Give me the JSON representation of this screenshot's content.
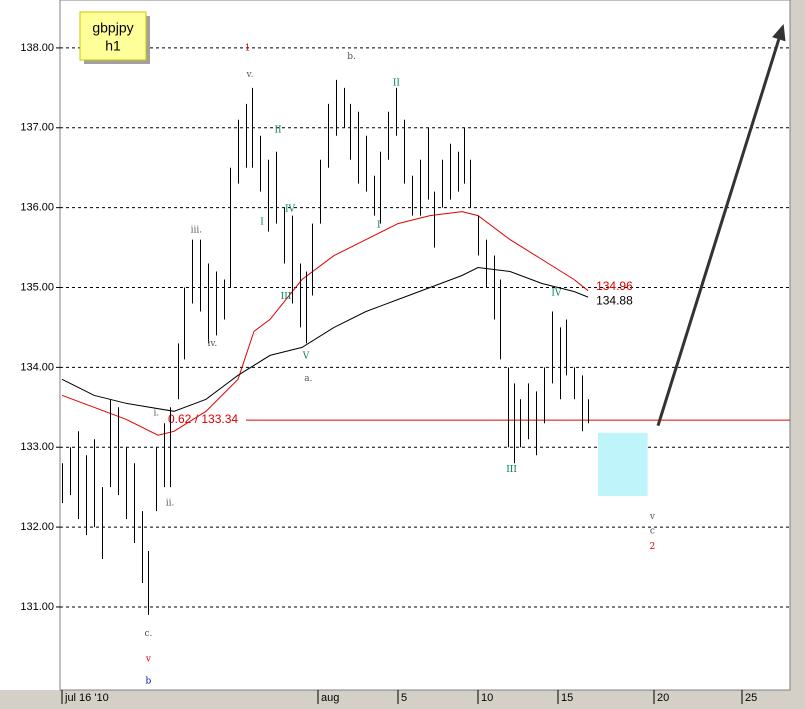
{
  "chart_data": {
    "type": "ohlc",
    "symbol": "gbpjpy",
    "timeframe": "h1",
    "ylim": [
      129.96,
      138.6
    ],
    "yticks": [
      {
        "value": 131,
        "label": "131.00"
      },
      {
        "value": 132,
        "label": "132.00"
      },
      {
        "value": 133,
        "label": "133.00"
      },
      {
        "value": 134,
        "label": "134.00"
      },
      {
        "value": 135,
        "label": "135.00"
      },
      {
        "value": 136,
        "label": "136.00"
      },
      {
        "value": 137,
        "label": "137.00"
      },
      {
        "value": 138,
        "label": "138.00"
      }
    ],
    "xlim": [
      16,
      61.5
    ],
    "xticks": [
      {
        "value": 16,
        "label": "jul 16 '10"
      },
      {
        "value": 32,
        "label": "aug"
      },
      {
        "value": 37,
        "label": "5"
      },
      {
        "value": 42,
        "label": "10"
      },
      {
        "value": 47,
        "label": "15"
      },
      {
        "value": 53,
        "label": "20"
      },
      {
        "value": 58.5,
        "label": "25"
      }
    ],
    "grid": true,
    "bar_color": "#000000",
    "bars": {
      "x": [
        16,
        16.5,
        17,
        17.5,
        18,
        18.5,
        19,
        19.5,
        20,
        20.5,
        21,
        21.38,
        21.88,
        22.38,
        22.75,
        23.25,
        23.63,
        24.13,
        24.63,
        25.13,
        25.63,
        26.13,
        26.5,
        27,
        27.5,
        27.88,
        28.38,
        28.88,
        29.38,
        29.88,
        30.38,
        30.88,
        31.25,
        31.63,
        32.13,
        32.63,
        33.13,
        33.63,
        34,
        34.5,
        35,
        35.5,
        35.88,
        36.38,
        36.88,
        37.38,
        37.88,
        38.38,
        38.88,
        39.25,
        39.75,
        40.25,
        40.75,
        41.13,
        41.5,
        42,
        42.5,
        43,
        43.38,
        43.88,
        44.25,
        44.63,
        45.13,
        45.63,
        46.13,
        46.63,
        47.13,
        47.5,
        48,
        48.5,
        48.88
      ],
      "low": [
        132.3,
        132.4,
        132.1,
        131.9,
        132.0,
        131.6,
        132.5,
        132.4,
        132.1,
        131.8,
        131.3,
        130.9,
        132.2,
        132.5,
        132.5,
        133.6,
        134.1,
        134.8,
        134.7,
        134.3,
        134.4,
        134.6,
        135.0,
        136.3,
        136.5,
        136.5,
        136.2,
        135.7,
        135.8,
        135.3,
        134.8,
        134.5,
        134.3,
        134.9,
        135.8,
        136.5,
        136.9,
        137.0,
        136.6,
        136.3,
        136.2,
        135.9,
        135.8,
        136.6,
        136.9,
        136.3,
        135.9,
        135.9,
        136.1,
        135.5,
        136.0,
        136.1,
        136.2,
        136.3,
        136.0,
        135.4,
        135.0,
        134.6,
        134.1,
        133.0,
        132.8,
        133.0,
        133.1,
        132.9,
        133.3,
        133.8,
        133.6,
        133.9,
        133.6,
        133.2,
        133.3
      ],
      "high": [
        132.8,
        133.0,
        133.2,
        132.9,
        133.1,
        132.5,
        133.6,
        133.5,
        133.0,
        132.8,
        132.2,
        131.7,
        133.0,
        133.3,
        133.5,
        134.3,
        135.0,
        135.6,
        135.6,
        135.3,
        135.2,
        135.1,
        136.5,
        137.1,
        137.3,
        137.5,
        136.9,
        136.6,
        136.7,
        136.0,
        135.9,
        135.3,
        135.2,
        135.8,
        136.6,
        137.3,
        137.6,
        137.5,
        137.3,
        137.2,
        136.9,
        136.4,
        136.7,
        137.2,
        137.5,
        137.1,
        136.4,
        136.6,
        137.0,
        136.2,
        136.6,
        136.8,
        136.7,
        137.0,
        136.6,
        135.9,
        135.6,
        135.4,
        135.1,
        134.0,
        133.8,
        133.6,
        133.8,
        133.7,
        134.0,
        134.7,
        134.5,
        134.6,
        134.0,
        133.9,
        133.6
      ]
    },
    "series": [
      {
        "color": "#e00000",
        "x": [
          16,
          18,
          20,
          22,
          23,
          25,
          27,
          28,
          29,
          31,
          33,
          35,
          37,
          39,
          41,
          42,
          44,
          46,
          48,
          48.88
        ],
        "values": [
          133.65,
          133.5,
          133.35,
          133.15,
          133.2,
          133.45,
          133.85,
          134.45,
          134.6,
          135.1,
          135.4,
          135.6,
          135.8,
          135.9,
          135.95,
          135.9,
          135.6,
          135.35,
          135.1,
          134.96
        ]
      },
      {
        "color": "#000000",
        "x": [
          16,
          18,
          20,
          23,
          25,
          27,
          29,
          31,
          33,
          35,
          37,
          39,
          41,
          42,
          44,
          46,
          48,
          48.88
        ],
        "values": [
          133.85,
          133.65,
          133.55,
          133.45,
          133.6,
          133.9,
          134.15,
          134.25,
          134.5,
          134.7,
          134.85,
          135.0,
          135.15,
          135.25,
          135.2,
          135.05,
          134.95,
          134.88
        ]
      }
    ],
    "hline": {
      "value": 133.34,
      "label": "0.62 / 133.34",
      "color": "#e00000"
    },
    "target_zone": {
      "x": [
        49.5,
        52.6
      ],
      "y": [
        132.39,
        133.18
      ],
      "color": "#bff4fb"
    },
    "arrow": {
      "from": [
        53.25,
        133.27
      ],
      "to": [
        61.1,
        138.3
      ],
      "color": "#333333"
    },
    "annotations": [
      {
        "text": "1",
        "x": 27.6,
        "y": 138.0,
        "color": "#e00000"
      },
      {
        "text": "v.",
        "x": 27.75,
        "y": 137.67,
        "color": "#555555"
      },
      {
        "text": "b.",
        "x": 34.1,
        "y": 137.89,
        "color": "#555555"
      },
      {
        "text": "II",
        "x": 29.5,
        "y": 136.97,
        "color": "#008060"
      },
      {
        "text": "II",
        "x": 36.9,
        "y": 137.56,
        "color": "#008060"
      },
      {
        "text": "iii.",
        "x": 24.4,
        "y": 135.72,
        "color": "#555555"
      },
      {
        "text": "iv.",
        "x": 25.4,
        "y": 134.3,
        "color": "#555555"
      },
      {
        "text": "i.",
        "x": 21.9,
        "y": 133.43,
        "color": "#555555"
      },
      {
        "text": "ii.",
        "x": 22.75,
        "y": 132.3,
        "color": "#555555"
      },
      {
        "text": "c.",
        "x": 21.4,
        "y": 130.67,
        "color": "#555555"
      },
      {
        "text": "v",
        "x": 21.4,
        "y": 130.35,
        "color": "#e00000"
      },
      {
        "text": "b",
        "x": 21.4,
        "y": 130.07,
        "color": "#0000cc"
      },
      {
        "text": "I",
        "x": 28.5,
        "y": 135.82,
        "color": "#008060"
      },
      {
        "text": "IV",
        "x": 30.25,
        "y": 135.98,
        "color": "#008060"
      },
      {
        "text": "III",
        "x": 30.0,
        "y": 134.89,
        "color": "#008060"
      },
      {
        "text": "V",
        "x": 31.25,
        "y": 134.14,
        "color": "#008060"
      },
      {
        "text": "a.",
        "x": 31.4,
        "y": 133.86,
        "color": "#555555"
      },
      {
        "text": "I",
        "x": 35.8,
        "y": 135.78,
        "color": "#008060"
      },
      {
        "text": "III",
        "x": 44.1,
        "y": 132.72,
        "color": "#008060"
      },
      {
        "text": "IV",
        "x": 46.9,
        "y": 134.93,
        "color": "#008060"
      },
      {
        "text": "v",
        "x": 52.9,
        "y": 132.13,
        "color": "#555555"
      },
      {
        "text": "c",
        "x": 52.9,
        "y": 131.95,
        "color": "#555555"
      },
      {
        "text": "2",
        "x": 52.9,
        "y": 131.76,
        "color": "#e00000"
      }
    ]
  }
}
